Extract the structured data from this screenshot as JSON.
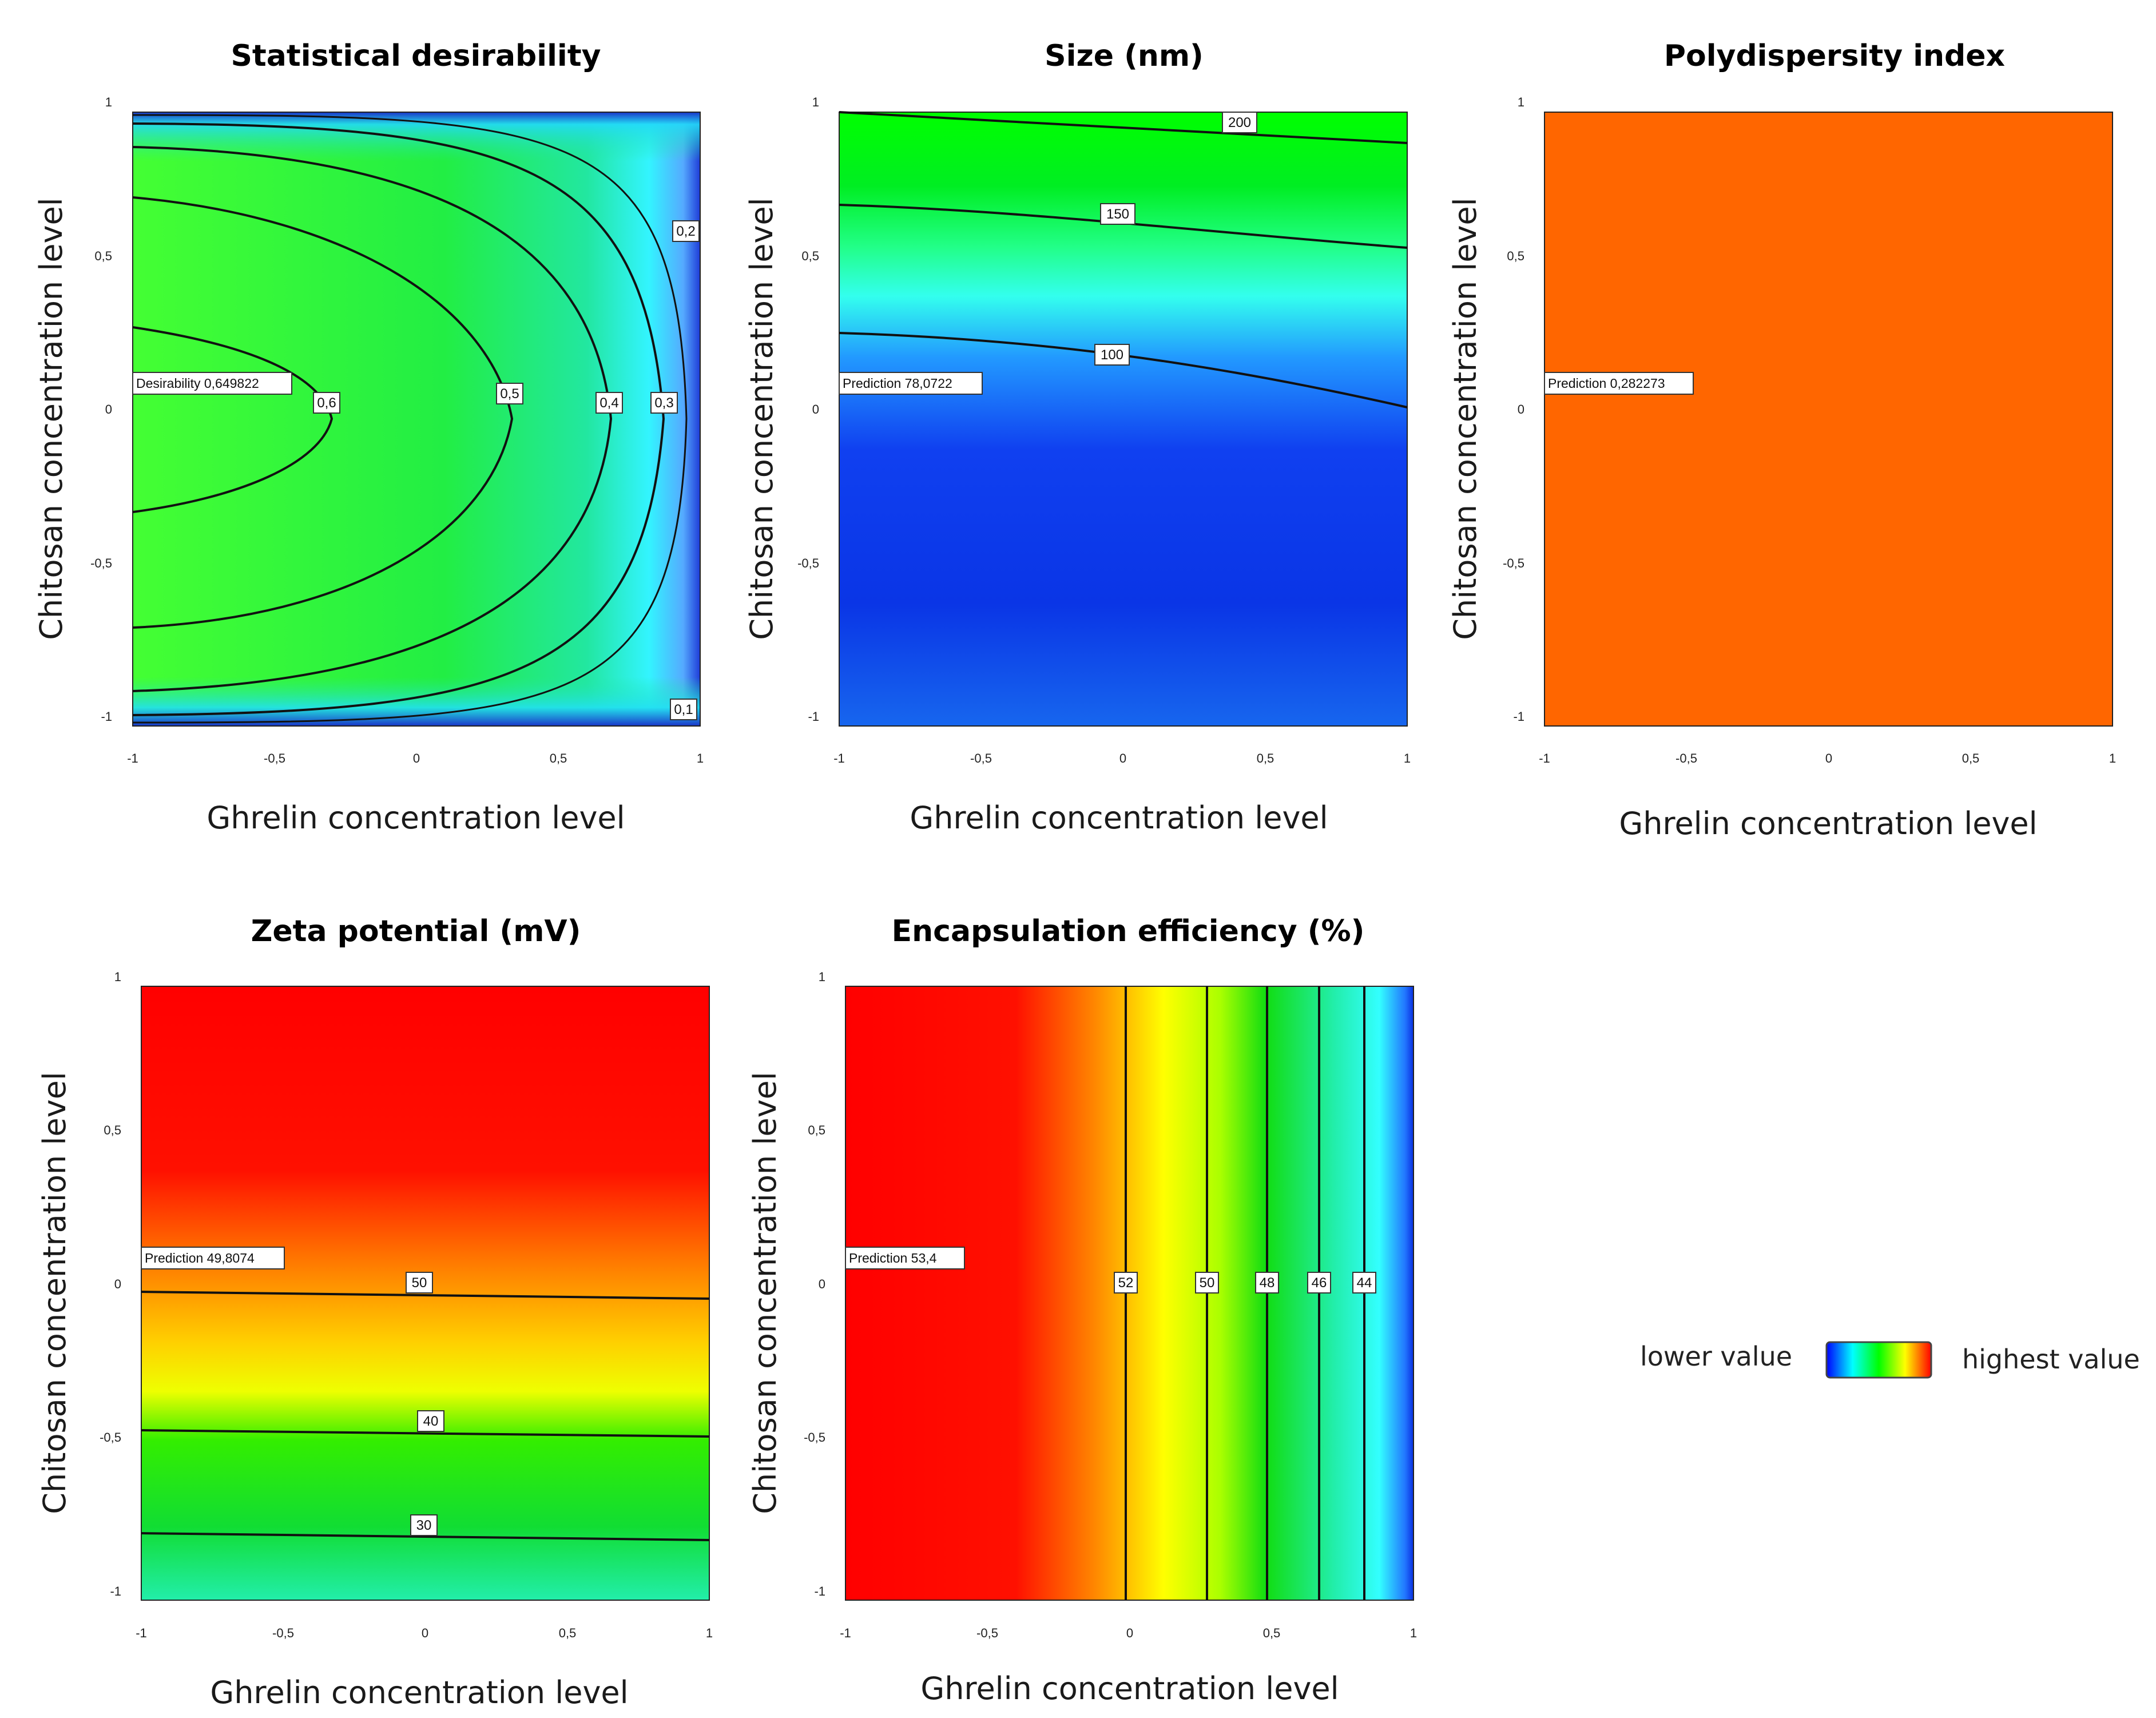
{
  "chart_data": [
    {
      "id": "desirability",
      "type": "heatmap",
      "title": "Statistical desirability",
      "xlabel": "Ghrelin concentration level",
      "ylabel": "Chitosan concentration level",
      "xlim": [
        -1,
        1
      ],
      "ylim": [
        -1,
        1
      ],
      "xticks": [
        "-1",
        "-0,5",
        "0",
        "0,5",
        "1"
      ],
      "yticks": [
        "-1",
        "-0,5",
        "0",
        "0,5",
        "1"
      ],
      "prediction_label": "Desirability 0,649822",
      "contour_levels": [
        "0,6",
        "0,5",
        "0,4",
        "0,3",
        "0,2",
        "0,1"
      ]
    },
    {
      "id": "size",
      "type": "heatmap",
      "title": "Size (nm)",
      "xlabel": "Ghrelin concentration level",
      "ylabel": "Chitosan concentration level",
      "xlim": [
        -1,
        1
      ],
      "ylim": [
        -1,
        1
      ],
      "xticks": [
        "-1",
        "-0,5",
        "0",
        "0,5",
        "1"
      ],
      "yticks": [
        "-1",
        "-0,5",
        "0",
        "0,5",
        "1"
      ],
      "prediction_label": "Prediction 78,0722",
      "contour_levels": [
        "200",
        "150",
        "100"
      ]
    },
    {
      "id": "pdi",
      "type": "heatmap",
      "title": "Polydispersity index",
      "xlabel": "Ghrelin concentration level",
      "ylabel": "Chitosan concentration level",
      "xlim": [
        -1,
        1
      ],
      "ylim": [
        -1,
        1
      ],
      "xticks": [
        "-1",
        "-0,5",
        "0",
        "0,5",
        "1"
      ],
      "yticks": [
        "-1",
        "-0,5",
        "0",
        "0,5",
        "1"
      ],
      "prediction_label": "Prediction 0,282273",
      "contour_levels": []
    },
    {
      "id": "zeta",
      "type": "heatmap",
      "title": "Zeta potential (mV)",
      "xlabel": "Ghrelin concentration level",
      "ylabel": "Chitosan concentration level",
      "xlim": [
        -1,
        1
      ],
      "ylim": [
        -1,
        1
      ],
      "xticks": [
        "-1",
        "-0,5",
        "0",
        "0,5",
        "1"
      ],
      "yticks": [
        "-1",
        "-0,5",
        "0",
        "0,5",
        "1"
      ],
      "prediction_label": "Prediction 49,8074",
      "contour_levels": [
        "50",
        "40",
        "30"
      ]
    },
    {
      "id": "ee",
      "type": "heatmap",
      "title": "Encapsulation efficiency (%)",
      "xlabel": "Ghrelin concentration level",
      "ylabel": "Chitosan concentration level",
      "xlim": [
        -1,
        1
      ],
      "ylim": [
        -1,
        1
      ],
      "xticks": [
        "-1",
        "-0,5",
        "0",
        "0,5",
        "1"
      ],
      "yticks": [
        "-1",
        "-0,5",
        "0",
        "0,5",
        "1"
      ],
      "prediction_label": "Prediction 53,4",
      "contour_levels": [
        "52",
        "50",
        "48",
        "46",
        "44"
      ]
    }
  ],
  "legend": {
    "low_label": "lower value",
    "high_label": "highest value"
  },
  "colors": {
    "scale_blue": "#0000ff",
    "scale_cyan": "#00ffff",
    "scale_green": "#00ff00",
    "scale_yellow": "#ffff00",
    "scale_red": "#ff0000",
    "pdi_orange": "#ff6600"
  }
}
